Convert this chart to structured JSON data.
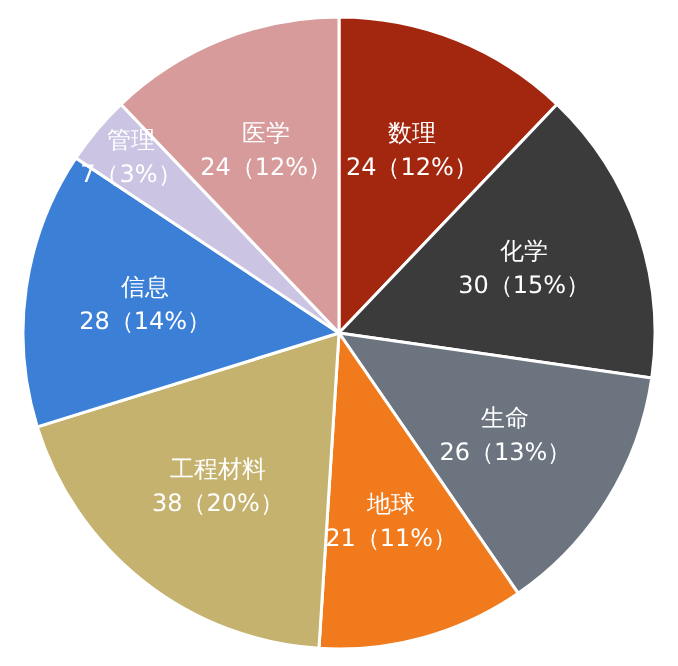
{
  "chart_data": {
    "type": "pie",
    "categories": [
      "数理",
      "化学",
      "生命",
      "地球",
      "工程材料",
      "信息",
      "管理",
      "医学"
    ],
    "values": [
      24,
      30,
      26,
      21,
      38,
      28,
      7,
      24
    ],
    "value_labels": [
      "24（12%）",
      "30（15%）",
      "26（13%）",
      "21（11%）",
      "38（20%）",
      "28（14%）",
      "7（3%）",
      "24（12%）"
    ],
    "colors": [
      "#a3270f",
      "#3b3b3b",
      "#6c7480",
      "#f07a1c",
      "#c5b26f",
      "#3b80d6",
      "#cbc5e3",
      "#d79b9b"
    ],
    "legend": false
  }
}
